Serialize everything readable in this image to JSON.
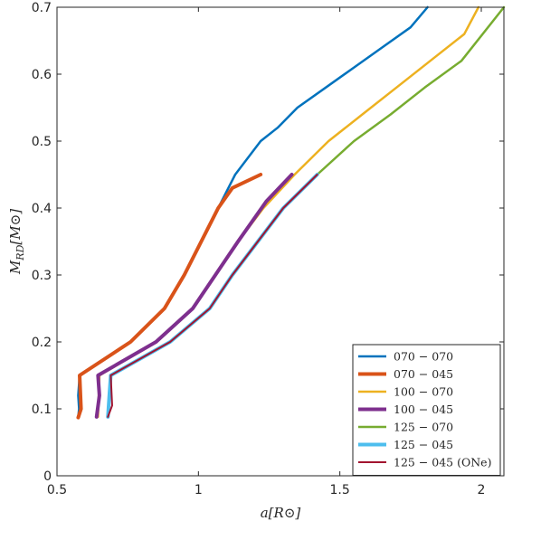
{
  "chart_data": {
    "type": "line",
    "title": "",
    "xlabel": "a[R⊙]",
    "ylabel": "M_RD[M⊙]",
    "xlim": [
      0.5,
      2.08
    ],
    "ylim": [
      0,
      0.7
    ],
    "xticks": [
      0.5,
      1,
      1.5,
      2
    ],
    "xtick_labels": [
      "0.5",
      "1",
      "1.5",
      "2"
    ],
    "yticks": [
      0,
      0.1,
      0.2,
      0.3,
      0.4,
      0.5,
      0.6,
      0.7
    ],
    "ytick_labels": [
      "0",
      "0.1",
      "0.2",
      "0.3",
      "0.4",
      "0.5",
      "0.6",
      "0.7"
    ],
    "grid": false,
    "legend_position": "bottom-right",
    "series": [
      {
        "name": "070 − 070",
        "color": "#0072BD",
        "width": 2.5,
        "x": [
          0.575,
          0.578,
          0.575,
          0.58,
          0.76,
          0.88,
          0.95,
          1.01,
          1.07,
          1.13,
          1.22,
          1.28,
          1.35,
          1.45,
          1.55,
          1.65,
          1.75,
          1.81
        ],
        "y": [
          0.088,
          0.1,
          0.12,
          0.15,
          0.2,
          0.25,
          0.3,
          0.35,
          0.4,
          0.45,
          0.5,
          0.52,
          0.55,
          0.58,
          0.61,
          0.64,
          0.67,
          0.7
        ]
      },
      {
        "name": "070 − 045",
        "color": "#D95319",
        "width": 4,
        "x": [
          0.575,
          0.585,
          0.583,
          0.58,
          0.76,
          0.88,
          0.95,
          1.01,
          1.07,
          1.12,
          1.22
        ],
        "y": [
          0.087,
          0.1,
          0.12,
          0.15,
          0.2,
          0.25,
          0.3,
          0.35,
          0.4,
          0.43,
          0.45
        ]
      },
      {
        "name": "100 − 070",
        "color": "#EDB120",
        "width": 2.5,
        "x": [
          0.645,
          0.65,
          0.85,
          0.98,
          1.06,
          1.14,
          1.23,
          1.34,
          1.46,
          1.58,
          1.7,
          1.82,
          1.94,
          1.99
        ],
        "y": [
          0.088,
          0.15,
          0.2,
          0.25,
          0.3,
          0.35,
          0.4,
          0.45,
          0.5,
          0.54,
          0.58,
          0.62,
          0.66,
          0.7
        ]
      },
      {
        "name": "100 − 045",
        "color": "#7E2F8E",
        "width": 4,
        "x": [
          0.64,
          0.65,
          0.645,
          0.85,
          0.98,
          1.06,
          1.14,
          1.24,
          1.33
        ],
        "y": [
          0.088,
          0.12,
          0.15,
          0.2,
          0.25,
          0.3,
          0.35,
          0.41,
          0.45
        ]
      },
      {
        "name": "125 − 070",
        "color": "#77AC30",
        "width": 2.5,
        "x": [
          0.68,
          0.685,
          0.69,
          0.9,
          1.04,
          1.12,
          1.21,
          1.3,
          1.42,
          1.55,
          1.68,
          1.8,
          1.93,
          2.08
        ],
        "y": [
          0.088,
          0.12,
          0.15,
          0.2,
          0.25,
          0.3,
          0.35,
          0.4,
          0.45,
          0.5,
          0.54,
          0.58,
          0.62,
          0.7
        ]
      },
      {
        "name": "125 − 045",
        "color": "#4DBEEE",
        "width": 4,
        "x": [
          0.68,
          0.685,
          0.69,
          0.9,
          1.04,
          1.12,
          1.21,
          1.3,
          1.42
        ],
        "y": [
          0.088,
          0.12,
          0.15,
          0.2,
          0.25,
          0.3,
          0.35,
          0.4,
          0.45
        ]
      },
      {
        "name": "125 − 045 (ONe)",
        "color": "#A2142F",
        "width": 2,
        "x": [
          0.68,
          0.695,
          0.69,
          0.9,
          1.04,
          1.12,
          1.21,
          1.3,
          1.42
        ],
        "y": [
          0.088,
          0.105,
          0.15,
          0.2,
          0.25,
          0.3,
          0.35,
          0.4,
          0.45
        ]
      }
    ]
  }
}
